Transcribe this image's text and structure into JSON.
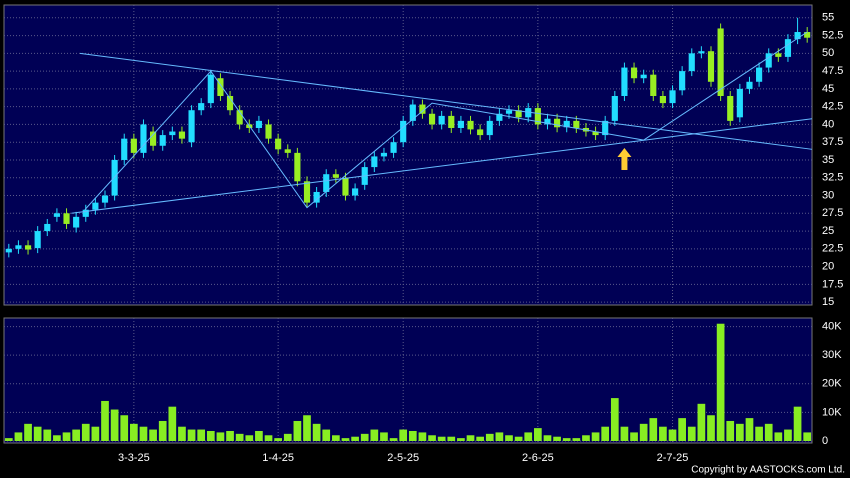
{
  "chart_data": {
    "type": "candlestick",
    "categories": [
      null,
      null,
      null,
      null,
      null,
      null,
      null,
      null,
      null,
      null,
      null,
      null,
      null,
      "3-3-25",
      null,
      null,
      null,
      null,
      null,
      null,
      null,
      null,
      null,
      null,
      null,
      null,
      null,
      null,
      "1-4-25",
      null,
      null,
      null,
      null,
      null,
      null,
      null,
      null,
      null,
      null,
      null,
      null,
      "2-5-25",
      null,
      null,
      null,
      null,
      null,
      null,
      null,
      null,
      null,
      null,
      null,
      null,
      null,
      "2-6-25",
      null,
      null,
      null,
      null,
      null,
      null,
      null,
      null,
      null,
      null,
      null,
      null,
      null,
      "2-7-25",
      null,
      null,
      null,
      null,
      null,
      null,
      null,
      null,
      null,
      null,
      null,
      null,
      null,
      null
    ],
    "open": [
      22,
      22.5,
      23,
      22.6,
      25,
      27,
      27.5,
      25.5,
      27,
      28,
      29,
      30,
      35,
      38,
      36,
      39,
      37,
      38.5,
      39,
      37.5,
      42,
      43,
      46.5,
      44,
      42,
      40,
      39.5,
      40,
      38,
      36.5,
      36,
      32,
      29,
      30.5,
      33,
      32.5,
      30,
      31.5,
      34,
      35.5,
      36,
      37.5,
      40.5,
      42.8,
      41.5,
      40,
      41.2,
      39.5,
      40.5,
      39.3,
      38.5,
      40.5,
      41.5,
      42,
      41,
      42.3,
      40,
      40.8,
      39.6,
      40.5,
      39.5,
      39,
      38.5,
      40.5,
      44,
      48,
      46.5,
      47,
      44,
      43,
      44.8,
      47.5,
      50,
      50.3,
      53.5,
      44,
      41,
      45,
      46,
      48,
      50,
      49.5,
      52,
      53
    ],
    "high": [
      23.2,
      23.7,
      23.7,
      25.7,
      26.7,
      28.2,
      28.2,
      27.7,
      28.7,
      29.7,
      30.7,
      35.7,
      38.7,
      38.7,
      40.7,
      39.7,
      39.2,
      39.7,
      39.7,
      42.7,
      43.7,
      47.7,
      47.2,
      44.7,
      42.7,
      40.7,
      41.2,
      40.7,
      38.7,
      37.2,
      36.7,
      32.7,
      31.2,
      33.7,
      33.7,
      33.2,
      31.7,
      34.7,
      36.2,
      36.7,
      38.2,
      41.2,
      43.5,
      43.5,
      42.2,
      41.9,
      41.9,
      41.2,
      41.2,
      40,
      41.2,
      42.2,
      42.7,
      42.7,
      43,
      43,
      41.5,
      41.5,
      41.2,
      41.2,
      40.2,
      39.7,
      41.2,
      44.7,
      48.7,
      48.7,
      47.7,
      47.7,
      44.7,
      45.5,
      48.2,
      50.7,
      51,
      51,
      54.2,
      44.7,
      45.7,
      46.7,
      48.7,
      50.7,
      50.7,
      52.7,
      55,
      53.7
    ],
    "low": [
      21.3,
      21.8,
      21.7,
      21.9,
      24.3,
      26.3,
      25.3,
      24.8,
      26.3,
      27.3,
      28.3,
      29.3,
      34.3,
      35.3,
      35.3,
      36.3,
      36.3,
      37.8,
      37.3,
      36.8,
      41.3,
      42.3,
      43.3,
      41.3,
      39.3,
      38.8,
      38.8,
      37.3,
      35.8,
      35.3,
      31.3,
      28.3,
      28.3,
      29.8,
      31.8,
      29.3,
      29.3,
      30.8,
      33.3,
      34.8,
      35.3,
      36.8,
      39.8,
      40.8,
      39.3,
      39.3,
      38.8,
      38.8,
      38.6,
      37.8,
      37.8,
      39.8,
      40.8,
      40.3,
      40.3,
      39.3,
      39.3,
      38.9,
      38.9,
      38.8,
      38.3,
      37.8,
      37.8,
      39.8,
      43.3,
      45.8,
      45.8,
      43.3,
      42.3,
      42.3,
      44.1,
      46.8,
      49.3,
      45.3,
      43.3,
      39.8,
      40.3,
      44.3,
      45.3,
      47.3,
      48.8,
      48.8,
      51.3,
      51.5
    ],
    "close": [
      22.5,
      23,
      22.4,
      25,
      26,
      27.5,
      26,
      27,
      28,
      29,
      30,
      35,
      38,
      36,
      40,
      37,
      38.5,
      39,
      38,
      42,
      43,
      47,
      44,
      42,
      40,
      39.5,
      40.5,
      38,
      36.5,
      36,
      32,
      29,
      30.5,
      33,
      32.5,
      30,
      31,
      34,
      35.5,
      36,
      37.5,
      40.5,
      42.8,
      41.5,
      40,
      41.2,
      39.5,
      40.5,
      39.3,
      38.5,
      40.5,
      41.5,
      42,
      41,
      42.3,
      40,
      40.8,
      39.6,
      40.5,
      39.5,
      39,
      38.5,
      40.5,
      44,
      48,
      46.5,
      47,
      44,
      43,
      44.8,
      47.5,
      50,
      50.3,
      46,
      44,
      40.5,
      45,
      46,
      48,
      50,
      49.5,
      52,
      53,
      52.2
    ],
    "volume": [
      1000,
      3000,
      6000,
      5000,
      4000,
      2000,
      3000,
      4000,
      6000,
      5000,
      14000,
      11000,
      9000,
      6000,
      5000,
      4000,
      7000,
      12000,
      5000,
      4000,
      4000,
      3500,
      3000,
      3500,
      2500,
      2000,
      3500,
      2000,
      1000,
      2500,
      7000,
      9000,
      6000,
      4000,
      2000,
      1000,
      1500,
      2500,
      4000,
      3000,
      1000,
      4000,
      3500,
      3000,
      2000,
      1500,
      1500,
      1000,
      2000,
      1500,
      2500,
      3000,
      2000,
      1500,
      3000,
      4500,
      2000,
      1500,
      1000,
      1000,
      2000,
      3000,
      5000,
      15000,
      5000,
      3000,
      6000,
      8000,
      5000,
      4000,
      8000,
      5000,
      13000,
      9000,
      41000,
      7000,
      6000,
      8000,
      5000,
      6000,
      3000,
      4000,
      12000,
      3000
    ],
    "up_color": "#22ddff",
    "down_color": "#99ee22",
    "volume_color": "#88ee22",
    "ylim": [
      14.6,
      56.8
    ],
    "yticks": [
      15,
      17.5,
      20,
      22.5,
      25,
      27.5,
      30,
      32.5,
      35,
      37.5,
      40,
      42.5,
      45,
      47.5,
      50,
      52.5,
      55
    ],
    "vlim": [
      0,
      43000
    ],
    "vticks": [
      0,
      {
        "value": 10000,
        "label": "10K"
      },
      {
        "value": 20000,
        "label": "20K"
      },
      {
        "value": 30000,
        "label": "30K"
      },
      {
        "value": 40000,
        "label": "40K"
      }
    ],
    "grid": true,
    "trendlines": [
      {
        "color": "#66bbff",
        "x": [
          6.5,
          83.5
        ],
        "y": [
          27.5,
          40.8
        ]
      },
      {
        "color": "#66bbff",
        "x": [
          7.4,
          83.5
        ],
        "y": [
          50,
          36.5
        ]
      },
      {
        "color": "#66bbff",
        "x": [
          7.9,
          21,
          31,
          44,
          66,
          83
        ],
        "y": [
          28,
          47.5,
          28.3,
          43,
          37.8,
          53
        ]
      }
    ],
    "arrow": {
      "x": 64,
      "y": 35,
      "color": "#ffcc33"
    },
    "footer": "Copyright by AASTOCKS.com Ltd."
  }
}
